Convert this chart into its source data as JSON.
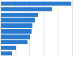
{
  "values": [
    49.5,
    36.0,
    26.0,
    24.0,
    22.5,
    21.5,
    20.5,
    19.0,
    11.0,
    8.0
  ],
  "bar_color": "#2b7bcc",
  "background_color": "#ffffff",
  "grid_color": "#d9d9d9",
  "xlim": [
    0,
    56
  ],
  "n_bars": 10,
  "bar_height": 0.78
}
